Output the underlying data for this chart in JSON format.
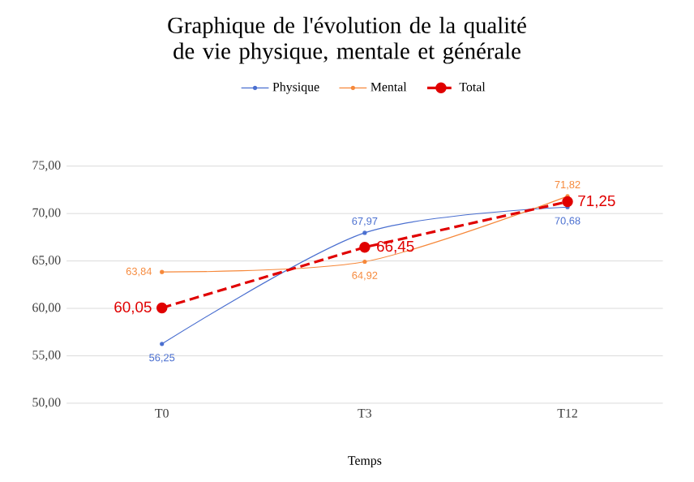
{
  "chart_data": {
    "type": "line",
    "title": "Graphique de l'évolution de la qualité de vie physique, mentale et générale",
    "xlabel": "Temps",
    "categories": [
      "T0",
      "T3",
      "T12"
    ],
    "series": [
      {
        "name": "Physique",
        "color": "#4a6fd0",
        "values": [
          56.25,
          67.97,
          70.68
        ],
        "value_labels": [
          "56,25",
          "67,97",
          "70,68"
        ],
        "marker": "circle",
        "line_style": "solid"
      },
      {
        "name": "Mental",
        "color": "#f6883a",
        "values": [
          63.84,
          64.92,
          71.82
        ],
        "value_labels": [
          "63,84",
          "64,92",
          "71,82"
        ],
        "marker": "circle",
        "line_style": "solid"
      },
      {
        "name": "Total",
        "color": "#e00000",
        "values": [
          60.05,
          66.45,
          71.25
        ],
        "value_labels": [
          "60,05",
          "66,45",
          "71,25"
        ],
        "marker": "circle",
        "line_style": "dashed"
      }
    ],
    "ylim": [
      50,
      75
    ],
    "yticks": [
      {
        "value": 50,
        "label": "50,00"
      },
      {
        "value": 55,
        "label": "55,00"
      },
      {
        "value": 60,
        "label": "60,00"
      },
      {
        "value": 65,
        "label": "65,00"
      },
      {
        "value": 70,
        "label": "70,00"
      },
      {
        "value": 75,
        "label": "75,00"
      }
    ],
    "grid": "y",
    "legend": "top"
  }
}
